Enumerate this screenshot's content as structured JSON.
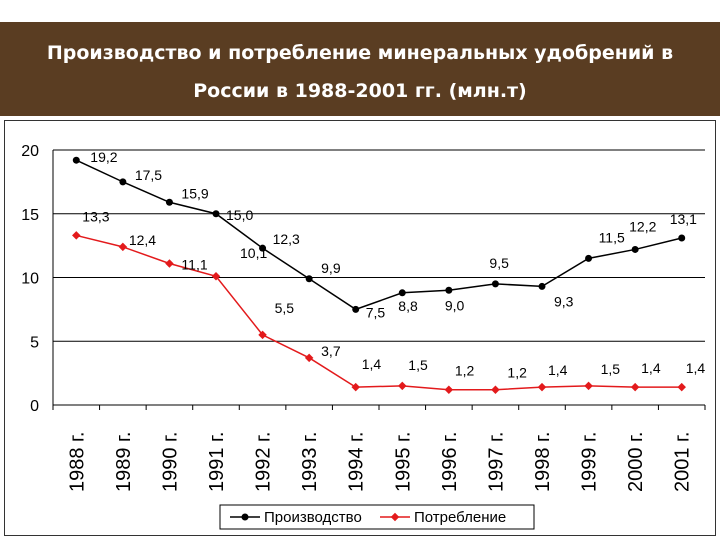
{
  "header": {
    "title_line1": "Производство и потребление минеральных удобрений в",
    "title_line2": "России в 1988-2001 гг. (млн.т)"
  },
  "chart_data": {
    "type": "line",
    "categories": [
      "1988 г.",
      "1989 г.",
      "1990 г.",
      "1991 г.",
      "1992 г.",
      "1993 г.",
      "1994 г.",
      "1995 г.",
      "1996 г.",
      "1997 г.",
      "1998 г.",
      "1999 г.",
      "2000 г.",
      "2001 г."
    ],
    "ylim": [
      0,
      20
    ],
    "yticks": [
      "0",
      "5",
      "10",
      "15",
      "20"
    ],
    "grid": true,
    "legend_position": "bottom",
    "series": [
      {
        "name": "Производство",
        "color": "#000000",
        "values": [
          19.2,
          17.5,
          15.9,
          15.0,
          12.3,
          9.9,
          7.5,
          8.8,
          9.0,
          9.5,
          9.3,
          11.5,
          12.2,
          13.1
        ],
        "labels": [
          "19,2",
          "17,5",
          "15,9",
          "15,0",
          "12,3",
          "9,9",
          "7,5",
          "8,8",
          "9,0",
          "9,5",
          "9,3",
          "11,5",
          "12,2",
          "13,1"
        ]
      },
      {
        "name": "Потребление",
        "color": "#e31a1c",
        "values": [
          13.3,
          12.4,
          11.1,
          10.1,
          5.5,
          3.7,
          1.4,
          1.5,
          1.2,
          1.2,
          1.4,
          1.5,
          1.4,
          1.4
        ],
        "labels": [
          "13,3",
          "12,4",
          "11,1",
          "10,1",
          "5,5",
          "3,7",
          "1,4",
          "1,5",
          "1,2",
          "1,2",
          "1,4",
          "1,5",
          "1,4",
          "1,4"
        ]
      }
    ]
  }
}
